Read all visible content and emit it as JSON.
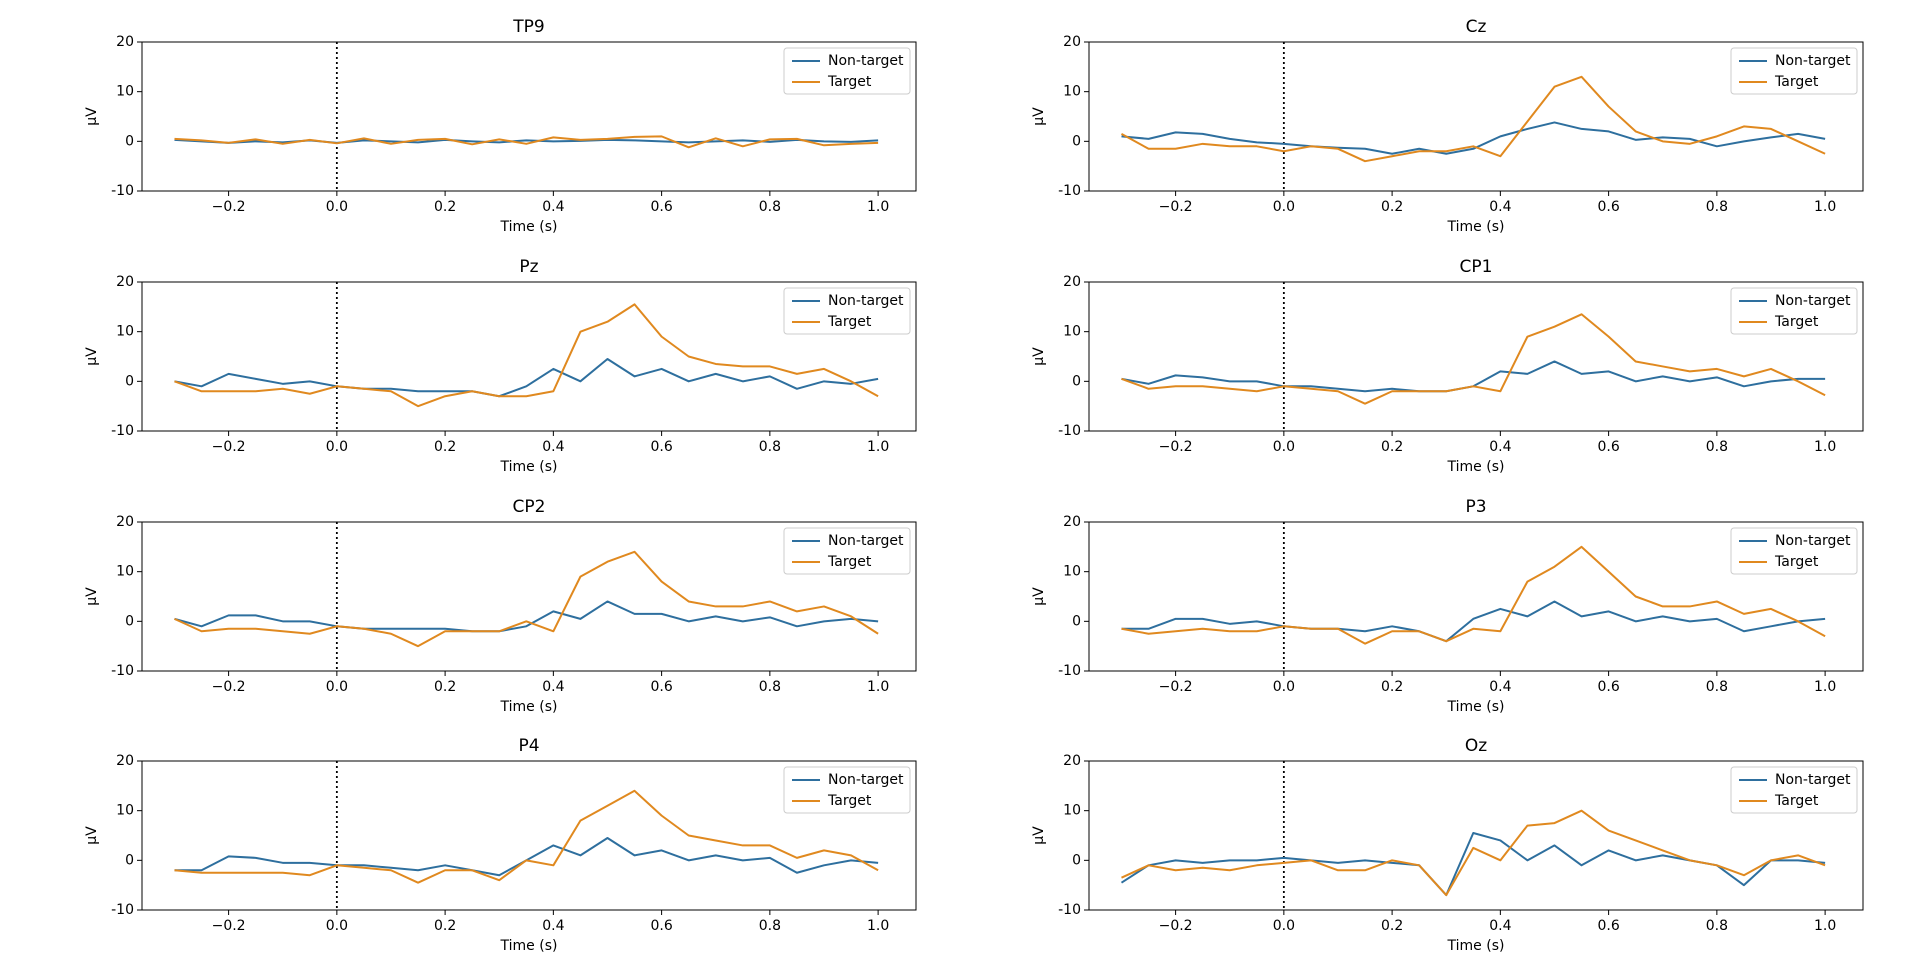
{
  "chart_data": [
    {
      "type": "line",
      "title": "TP9",
      "xlabel": "Time (s)",
      "ylabel": "µV",
      "x": [
        -0.3,
        -0.25,
        -0.2,
        -0.15,
        -0.1,
        -0.05,
        0,
        0.05,
        0.1,
        0.15,
        0.2,
        0.25,
        0.3,
        0.35,
        0.4,
        0.45,
        0.5,
        0.55,
        0.6,
        0.65,
        0.7,
        0.75,
        0.8,
        0.85,
        0.9,
        0.95,
        1.0
      ],
      "xlim": [
        -0.36,
        1.07
      ],
      "ylim": [
        -10,
        20
      ],
      "xticks": [
        {
          "value": -0.2,
          "label": "−0.2"
        },
        {
          "value": 0,
          "label": "0.0"
        },
        0.2,
        0.4,
        0.6,
        0.8,
        {
          "value": 1,
          "label": "1.0"
        }
      ],
      "yticks": [
        -10,
        0,
        10,
        20
      ],
      "vline": 0,
      "legend": "upper right",
      "series": [
        {
          "name": "Non-target",
          "color": "#2e6f9e",
          "values": [
            0.3,
            0,
            -0.3,
            0,
            -0.2,
            0.2,
            -0.3,
            0.2,
            0,
            -0.2,
            0.3,
            0,
            -0.2,
            0.2,
            0,
            0.1,
            0.3,
            0.2,
            0,
            -0.2,
            0,
            0.2,
            -0.1,
            0.3,
            0,
            -0.1,
            0.2
          ]
        },
        {
          "name": "Target",
          "color": "#e0891f",
          "values": [
            0.5,
            0.2,
            -0.3,
            0.4,
            -0.5,
            0.3,
            -0.4,
            0.6,
            -0.5,
            0.3,
            0.5,
            -0.6,
            0.4,
            -0.5,
            0.8,
            0.3,
            0.5,
            0.9,
            1.0,
            -1.2,
            0.6,
            -1.0,
            0.4,
            0.5,
            -0.8,
            -0.5,
            -0.3
          ]
        }
      ]
    },
    {
      "type": "line",
      "title": "Cz",
      "xlabel": "Time (s)",
      "ylabel": "µV",
      "x": [
        -0.3,
        -0.25,
        -0.2,
        -0.15,
        -0.1,
        -0.05,
        0,
        0.05,
        0.1,
        0.15,
        0.2,
        0.25,
        0.3,
        0.35,
        0.4,
        0.45,
        0.5,
        0.55,
        0.6,
        0.65,
        0.7,
        0.75,
        0.8,
        0.85,
        0.9,
        0.95,
        1.0
      ],
      "xlim": [
        -0.36,
        1.07
      ],
      "ylim": [
        -10,
        20
      ],
      "xticks": [
        {
          "value": -0.2,
          "label": "−0.2"
        },
        {
          "value": 0,
          "label": "0.0"
        },
        0.2,
        0.4,
        0.6,
        0.8,
        {
          "value": 1,
          "label": "1.0"
        }
      ],
      "yticks": [
        -10,
        0,
        10,
        20
      ],
      "vline": 0,
      "legend": "upper right",
      "series": [
        {
          "name": "Non-target",
          "color": "#2e6f9e",
          "values": [
            1,
            0.5,
            1.8,
            1.5,
            0.5,
            -0.2,
            -0.5,
            -1,
            -1.3,
            -1.5,
            -2.5,
            -1.5,
            -2.5,
            -1.5,
            1,
            2.5,
            3.8,
            2.5,
            2,
            0.3,
            0.8,
            0.5,
            -1,
            0,
            0.8,
            1.5,
            0.5
          ]
        },
        {
          "name": "Target",
          "color": "#e0891f",
          "values": [
            1.5,
            -1.5,
            -1.5,
            -0.5,
            -1,
            -1,
            -2,
            -1,
            -1.5,
            -4,
            -3,
            -2,
            -2,
            -1,
            -3,
            4,
            11,
            13,
            7,
            2,
            0,
            -0.5,
            1,
            3,
            2.5,
            0,
            -2.5
          ]
        }
      ]
    },
    {
      "type": "line",
      "title": "Pz",
      "xlabel": "Time (s)",
      "ylabel": "µV",
      "x": [
        -0.3,
        -0.25,
        -0.2,
        -0.15,
        -0.1,
        -0.05,
        0,
        0.05,
        0.1,
        0.15,
        0.2,
        0.25,
        0.3,
        0.35,
        0.4,
        0.45,
        0.5,
        0.55,
        0.6,
        0.65,
        0.7,
        0.75,
        0.8,
        0.85,
        0.9,
        0.95,
        1.0
      ],
      "xlim": [
        -0.36,
        1.07
      ],
      "ylim": [
        -10,
        20
      ],
      "xticks": [
        {
          "value": -0.2,
          "label": "−0.2"
        },
        {
          "value": 0,
          "label": "0.0"
        },
        0.2,
        0.4,
        0.6,
        0.8,
        {
          "value": 1,
          "label": "1.0"
        }
      ],
      "yticks": [
        -10,
        0,
        10,
        20
      ],
      "vline": 0,
      "legend": "upper right",
      "series": [
        {
          "name": "Non-target",
          "color": "#2e6f9e",
          "values": [
            0,
            -1,
            1.5,
            0.5,
            -0.5,
            0,
            -1,
            -1.5,
            -1.5,
            -2,
            -2,
            -2,
            -3,
            -1,
            2.5,
            0,
            4.5,
            1,
            2.5,
            0,
            1.5,
            0,
            1,
            -1.5,
            0,
            -0.5,
            0.5
          ]
        },
        {
          "name": "Target",
          "color": "#e0891f",
          "values": [
            0,
            -2,
            -2,
            -2,
            -1.5,
            -2.5,
            -1,
            -1.5,
            -2,
            -5,
            -3,
            -2,
            -3,
            -3,
            -2,
            10,
            12,
            15.5,
            9,
            5,
            3.5,
            3,
            3,
            1.5,
            2.5,
            0,
            -3
          ]
        }
      ]
    },
    {
      "type": "line",
      "title": "CP1",
      "xlabel": "Time (s)",
      "ylabel": "µV",
      "x": [
        -0.3,
        -0.25,
        -0.2,
        -0.15,
        -0.1,
        -0.05,
        0,
        0.05,
        0.1,
        0.15,
        0.2,
        0.25,
        0.3,
        0.35,
        0.4,
        0.45,
        0.5,
        0.55,
        0.6,
        0.65,
        0.7,
        0.75,
        0.8,
        0.85,
        0.9,
        0.95,
        1.0
      ],
      "xlim": [
        -0.36,
        1.07
      ],
      "ylim": [
        -10,
        20
      ],
      "xticks": [
        {
          "value": -0.2,
          "label": "−0.2"
        },
        {
          "value": 0,
          "label": "0.0"
        },
        0.2,
        0.4,
        0.6,
        0.8,
        {
          "value": 1,
          "label": "1.0"
        }
      ],
      "yticks": [
        -10,
        0,
        10,
        20
      ],
      "vline": 0,
      "legend": "upper right",
      "series": [
        {
          "name": "Non-target",
          "color": "#2e6f9e",
          "values": [
            0.5,
            -0.5,
            1.2,
            0.8,
            0,
            0,
            -1,
            -1,
            -1.5,
            -2,
            -1.5,
            -2,
            -2,
            -1,
            2,
            1.5,
            4,
            1.5,
            2,
            0,
            1,
            0,
            0.8,
            -1,
            0,
            0.5,
            0.5
          ]
        },
        {
          "name": "Target",
          "color": "#e0891f",
          "values": [
            0.5,
            -1.5,
            -1,
            -1,
            -1.5,
            -2,
            -1,
            -1.5,
            -2,
            -4.5,
            -2,
            -2,
            -2,
            -1,
            -2,
            9,
            11,
            13.5,
            9,
            4,
            3,
            2,
            2.5,
            1,
            2.5,
            0,
            -2.8
          ]
        }
      ]
    },
    {
      "type": "line",
      "title": "CP2",
      "xlabel": "Time (s)",
      "ylabel": "µV",
      "x": [
        -0.3,
        -0.25,
        -0.2,
        -0.15,
        -0.1,
        -0.05,
        0,
        0.05,
        0.1,
        0.15,
        0.2,
        0.25,
        0.3,
        0.35,
        0.4,
        0.45,
        0.5,
        0.55,
        0.6,
        0.65,
        0.7,
        0.75,
        0.8,
        0.85,
        0.9,
        0.95,
        1.0
      ],
      "xlim": [
        -0.36,
        1.07
      ],
      "ylim": [
        -10,
        20
      ],
      "xticks": [
        {
          "value": -0.2,
          "label": "−0.2"
        },
        {
          "value": 0,
          "label": "0.0"
        },
        0.2,
        0.4,
        0.6,
        0.8,
        {
          "value": 1,
          "label": "1.0"
        }
      ],
      "yticks": [
        -10,
        0,
        10,
        20
      ],
      "vline": 0,
      "legend": "upper right",
      "series": [
        {
          "name": "Non-target",
          "color": "#2e6f9e",
          "values": [
            0.5,
            -1,
            1.2,
            1.2,
            0,
            0,
            -1,
            -1.5,
            -1.5,
            -1.5,
            -1.5,
            -2,
            -2,
            -1,
            2,
            0.5,
            4,
            1.5,
            1.5,
            0,
            1,
            0,
            0.8,
            -1,
            0,
            0.5,
            0
          ]
        },
        {
          "name": "Target",
          "color": "#e0891f",
          "values": [
            0.5,
            -2,
            -1.5,
            -1.5,
            -2,
            -2.5,
            -1,
            -1.5,
            -2.5,
            -5,
            -2,
            -2,
            -2,
            0,
            -2,
            9,
            12,
            14,
            8,
            4,
            3,
            3,
            4,
            2,
            3,
            1,
            -2.5
          ]
        }
      ]
    },
    {
      "type": "line",
      "title": "P3",
      "xlabel": "Time (s)",
      "ylabel": "µV",
      "x": [
        -0.3,
        -0.25,
        -0.2,
        -0.15,
        -0.1,
        -0.05,
        0,
        0.05,
        0.1,
        0.15,
        0.2,
        0.25,
        0.3,
        0.35,
        0.4,
        0.45,
        0.5,
        0.55,
        0.6,
        0.65,
        0.7,
        0.75,
        0.8,
        0.85,
        0.9,
        0.95,
        1.0
      ],
      "xlim": [
        -0.36,
        1.07
      ],
      "ylim": [
        -10,
        20
      ],
      "xticks": [
        {
          "value": -0.2,
          "label": "−0.2"
        },
        {
          "value": 0,
          "label": "0.0"
        },
        0.2,
        0.4,
        0.6,
        0.8,
        {
          "value": 1,
          "label": "1.0"
        }
      ],
      "yticks": [
        -10,
        0,
        10,
        20
      ],
      "vline": 0,
      "legend": "upper right",
      "series": [
        {
          "name": "Non-target",
          "color": "#2e6f9e",
          "values": [
            -1.5,
            -1.5,
            0.5,
            0.5,
            -0.5,
            0,
            -1,
            -1.5,
            -1.5,
            -2,
            -1,
            -2,
            -4,
            0.5,
            2.5,
            1,
            4,
            1,
            2,
            0,
            1,
            0,
            0.5,
            -2,
            -1,
            0,
            0.5
          ]
        },
        {
          "name": "Target",
          "color": "#e0891f",
          "values": [
            -1.5,
            -2.5,
            -2,
            -1.5,
            -2,
            -2,
            -1,
            -1.5,
            -1.5,
            -4.5,
            -2,
            -2,
            -4,
            -1.5,
            -2,
            8,
            11,
            15,
            10,
            5,
            3,
            3,
            4,
            1.5,
            2.5,
            0,
            -3
          ]
        }
      ]
    },
    {
      "type": "line",
      "title": "P4",
      "xlabel": "Time (s)",
      "ylabel": "µV",
      "x": [
        -0.3,
        -0.25,
        -0.2,
        -0.15,
        -0.1,
        -0.05,
        0,
        0.05,
        0.1,
        0.15,
        0.2,
        0.25,
        0.3,
        0.35,
        0.4,
        0.45,
        0.5,
        0.55,
        0.6,
        0.65,
        0.7,
        0.75,
        0.8,
        0.85,
        0.9,
        0.95,
        1.0
      ],
      "xlim": [
        -0.36,
        1.07
      ],
      "ylim": [
        -10,
        20
      ],
      "xticks": [
        {
          "value": -0.2,
          "label": "−0.2"
        },
        {
          "value": 0,
          "label": "0.0"
        },
        0.2,
        0.4,
        0.6,
        0.8,
        {
          "value": 1,
          "label": "1.0"
        }
      ],
      "yticks": [
        -10,
        0,
        10,
        20
      ],
      "vline": 0,
      "legend": "upper right",
      "series": [
        {
          "name": "Non-target",
          "color": "#2e6f9e",
          "values": [
            -2,
            -2,
            0.8,
            0.5,
            -0.5,
            -0.5,
            -1,
            -1,
            -1.5,
            -2,
            -1,
            -2,
            -3,
            0,
            3,
            1,
            4.5,
            1,
            2,
            0,
            1,
            0,
            0.5,
            -2.5,
            -1,
            0,
            -0.5
          ]
        },
        {
          "name": "Target",
          "color": "#e0891f",
          "values": [
            -2,
            -2.5,
            -2.5,
            -2.5,
            -2.5,
            -3,
            -1,
            -1.5,
            -2,
            -4.5,
            -2,
            -2,
            -4,
            0,
            -1,
            8,
            11,
            14,
            9,
            5,
            4,
            3,
            3,
            0.5,
            2,
            1,
            -2
          ]
        }
      ]
    },
    {
      "type": "line",
      "title": "Oz",
      "xlabel": "Time (s)",
      "ylabel": "µV",
      "x": [
        -0.3,
        -0.25,
        -0.2,
        -0.15,
        -0.1,
        -0.05,
        0,
        0.05,
        0.1,
        0.15,
        0.2,
        0.25,
        0.3,
        0.35,
        0.4,
        0.45,
        0.5,
        0.55,
        0.6,
        0.65,
        0.7,
        0.75,
        0.8,
        0.85,
        0.9,
        0.95,
        1.0
      ],
      "xlim": [
        -0.36,
        1.07
      ],
      "ylim": [
        -10,
        20
      ],
      "xticks": [
        {
          "value": -0.2,
          "label": "−0.2"
        },
        {
          "value": 0,
          "label": "0.0"
        },
        0.2,
        0.4,
        0.6,
        0.8,
        {
          "value": 1,
          "label": "1.0"
        }
      ],
      "yticks": [
        -10,
        0,
        10,
        20
      ],
      "vline": 0,
      "legend": "upper right",
      "series": [
        {
          "name": "Non-target",
          "color": "#2e6f9e",
          "values": [
            -4.5,
            -1,
            0,
            -0.5,
            0,
            0,
            0.5,
            0,
            -0.5,
            0,
            -0.5,
            -1,
            -7,
            5.5,
            4,
            0,
            3,
            -1,
            2,
            0,
            1,
            0,
            -1,
            -5,
            0,
            0,
            -0.5
          ]
        },
        {
          "name": "Target",
          "color": "#e0891f",
          "values": [
            -3.5,
            -1,
            -2,
            -1.5,
            -2,
            -1,
            -0.5,
            0,
            -2,
            -2,
            0,
            -1,
            -7,
            2.5,
            0,
            7,
            7.5,
            10,
            6,
            4,
            2,
            0,
            -1,
            -3,
            0,
            1,
            -1
          ]
        }
      ]
    }
  ]
}
